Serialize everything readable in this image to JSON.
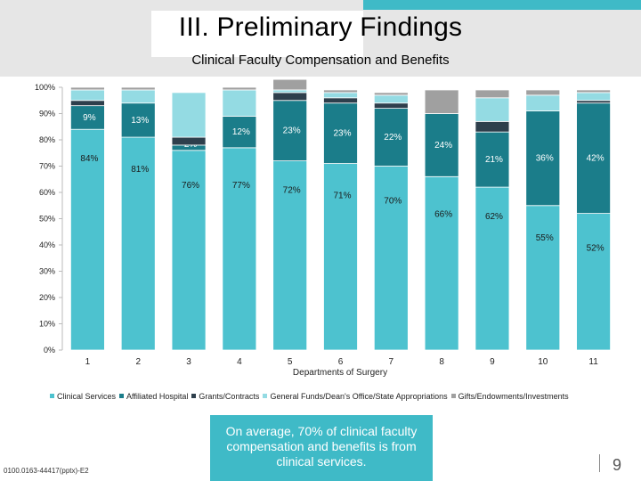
{
  "header": {
    "title": "III. Preliminary Findings",
    "subtitle": "Clinical Faculty Compensation and Benefits"
  },
  "colors": {
    "header_bg": "#e6e6e6",
    "accent": "#3fbac7"
  },
  "chart_data": {
    "type": "bar",
    "stacked": true,
    "categories": [
      "1",
      "2",
      "3",
      "4",
      "5",
      "6",
      "7",
      "8",
      "9",
      "10",
      "11"
    ],
    "xlabel": "Departments of Surgery",
    "ylabel": "",
    "ylim": [
      0,
      100
    ],
    "yticks": [
      "0%",
      "10%",
      "20%",
      "30%",
      "40%",
      "50%",
      "60%",
      "70%",
      "80%",
      "90%",
      "100%"
    ],
    "grid": false,
    "legend_position": "bottom",
    "series": [
      {
        "name": "Clinical Services",
        "color": "#4dc2cf",
        "values": [
          84,
          81,
          76,
          77,
          72,
          71,
          70,
          66,
          62,
          55,
          52
        ],
        "labels": [
          "84%",
          "81%",
          "76%",
          "77%",
          "72%",
          "71%",
          "70%",
          "66%",
          "62%",
          "55%",
          "52%"
        ]
      },
      {
        "name": "Affiliated Hospital",
        "color": "#1b7d8a",
        "values": [
          9,
          13,
          2,
          12,
          23,
          23,
          22,
          24,
          21,
          36,
          42
        ],
        "labels": [
          "9%",
          "13%",
          "2%",
          "12%",
          "23%",
          "23%",
          "22%",
          "24%",
          "21%",
          "36%",
          "42%"
        ]
      },
      {
        "name": "Grants/Contracts",
        "color": "#2e3f4c",
        "values": [
          2,
          0,
          3,
          0,
          3,
          2,
          2,
          0,
          4,
          0,
          1
        ],
        "labels": []
      },
      {
        "name": "General Funds/Dean's Office/State Appropriations",
        "color": "#94dbe3",
        "values": [
          4,
          5,
          17,
          10,
          1,
          2,
          3,
          0,
          9,
          6,
          3
        ],
        "labels": []
      },
      {
        "name": "Gifts/Endowments/Investments",
        "color": "#a0a0a0",
        "values": [
          1,
          1,
          0,
          1,
          4,
          1,
          1,
          9,
          3,
          2,
          1
        ],
        "labels": []
      }
    ]
  },
  "callout": {
    "text": "On average, 70% of clinical faculty compensation and benefits is from clinical services."
  },
  "footer": {
    "code": "0100.0163-44417(pptx)-E2",
    "page_number": "9"
  }
}
